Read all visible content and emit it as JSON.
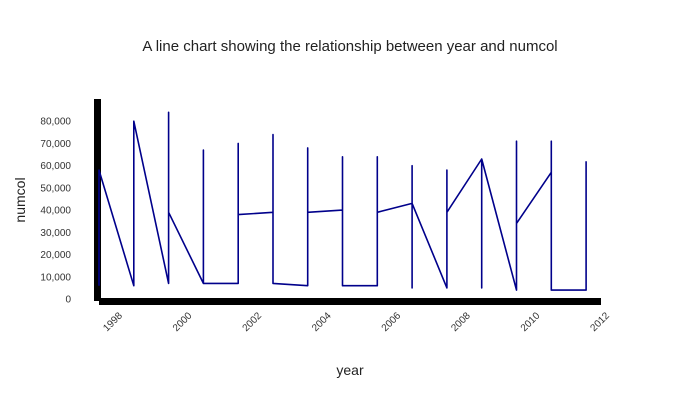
{
  "chart_data": {
    "type": "line",
    "title": "A line chart showing the relationship between year and numcol",
    "xlabel": "year",
    "ylabel": "numcol",
    "xlim": [
      1997.6,
      2012.0
    ],
    "ylim": [
      0,
      90000
    ],
    "x_ticks": [
      1998,
      2000,
      2002,
      2004,
      2006,
      2008,
      2010,
      2012
    ],
    "x_tick_labels": [
      "1998",
      "2000",
      "2002",
      "2004",
      "2006",
      "2008",
      "2010",
      "2012"
    ],
    "y_ticks": [
      0,
      10000,
      20000,
      30000,
      40000,
      50000,
      60000,
      70000,
      80000
    ],
    "y_tick_labels": [
      "0",
      "10,000",
      "20,000",
      "30,000",
      "40,000",
      "50,000",
      "60,000",
      "70,000",
      "80,000"
    ],
    "grid": false,
    "legend": "none",
    "series": [
      {
        "color": "#00008b",
        "points": [
          [
            1997.6,
            6000
          ],
          [
            1997.6,
            58000
          ],
          [
            1998.6,
            6000
          ],
          [
            1998.6,
            80000
          ],
          [
            1999.6,
            7000
          ],
          [
            1999.6,
            84000
          ],
          [
            1999.6,
            39000
          ],
          [
            2000.6,
            7000
          ],
          [
            2000.6,
            67000
          ],
          [
            2000.6,
            7000
          ],
          [
            2001.6,
            7000
          ],
          [
            2001.6,
            70000
          ],
          [
            2001.6,
            38000
          ],
          [
            2002.6,
            39000
          ],
          [
            2002.6,
            74000
          ],
          [
            2002.6,
            7000
          ],
          [
            2003.6,
            6000
          ],
          [
            2003.6,
            68000
          ],
          [
            2003.6,
            39000
          ],
          [
            2004.6,
            40000
          ],
          [
            2004.6,
            64000
          ],
          [
            2004.6,
            6000
          ],
          [
            2005.6,
            6000
          ],
          [
            2005.6,
            64000
          ],
          [
            2005.6,
            39000
          ],
          [
            2006.6,
            43000
          ],
          [
            2006.6,
            60000
          ],
          [
            2006.6,
            5000
          ],
          [
            2006.6,
            43000
          ],
          [
            2007.6,
            5000
          ],
          [
            2007.6,
            58000
          ],
          [
            2007.6,
            39000
          ],
          [
            2008.6,
            63000
          ],
          [
            2008.6,
            5000
          ],
          [
            2008.6,
            63000
          ],
          [
            2009.6,
            4000
          ],
          [
            2009.6,
            71000
          ],
          [
            2009.6,
            34000
          ],
          [
            2010.6,
            57000
          ],
          [
            2010.6,
            71000
          ],
          [
            2010.6,
            4000
          ],
          [
            2011.6,
            4000
          ],
          [
            2011.6,
            62000
          ]
        ]
      }
    ]
  }
}
